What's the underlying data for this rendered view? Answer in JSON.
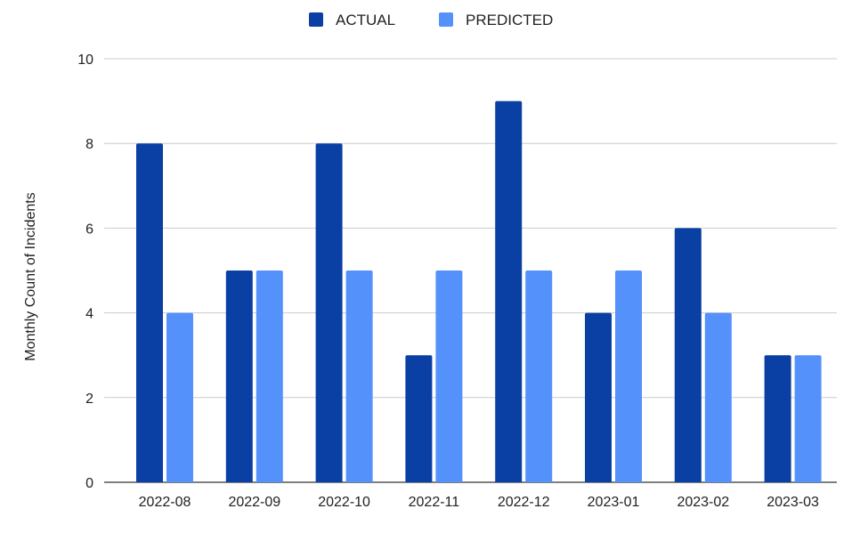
{
  "chart_data": {
    "type": "bar",
    "title": "",
    "xlabel": "",
    "ylabel": "Monthly Count of Incidents",
    "categories": [
      "2022-08",
      "2022-09",
      "2022-10",
      "2022-11",
      "2022-12",
      "2023-01",
      "2023-02",
      "2023-03"
    ],
    "series": [
      {
        "name": "ACTUAL",
        "color": "#0a3fa3",
        "values": [
          8,
          5,
          8,
          3,
          9,
          4,
          6,
          3
        ]
      },
      {
        "name": "PREDICTED",
        "color": "#5591fb",
        "values": [
          4,
          5,
          5,
          5,
          5,
          5,
          4,
          3
        ]
      }
    ],
    "ylim": [
      0,
      10
    ],
    "yticks": [
      "0",
      "2",
      "4",
      "6",
      "8",
      "10"
    ],
    "grid": true,
    "legend_position": "top-center"
  }
}
